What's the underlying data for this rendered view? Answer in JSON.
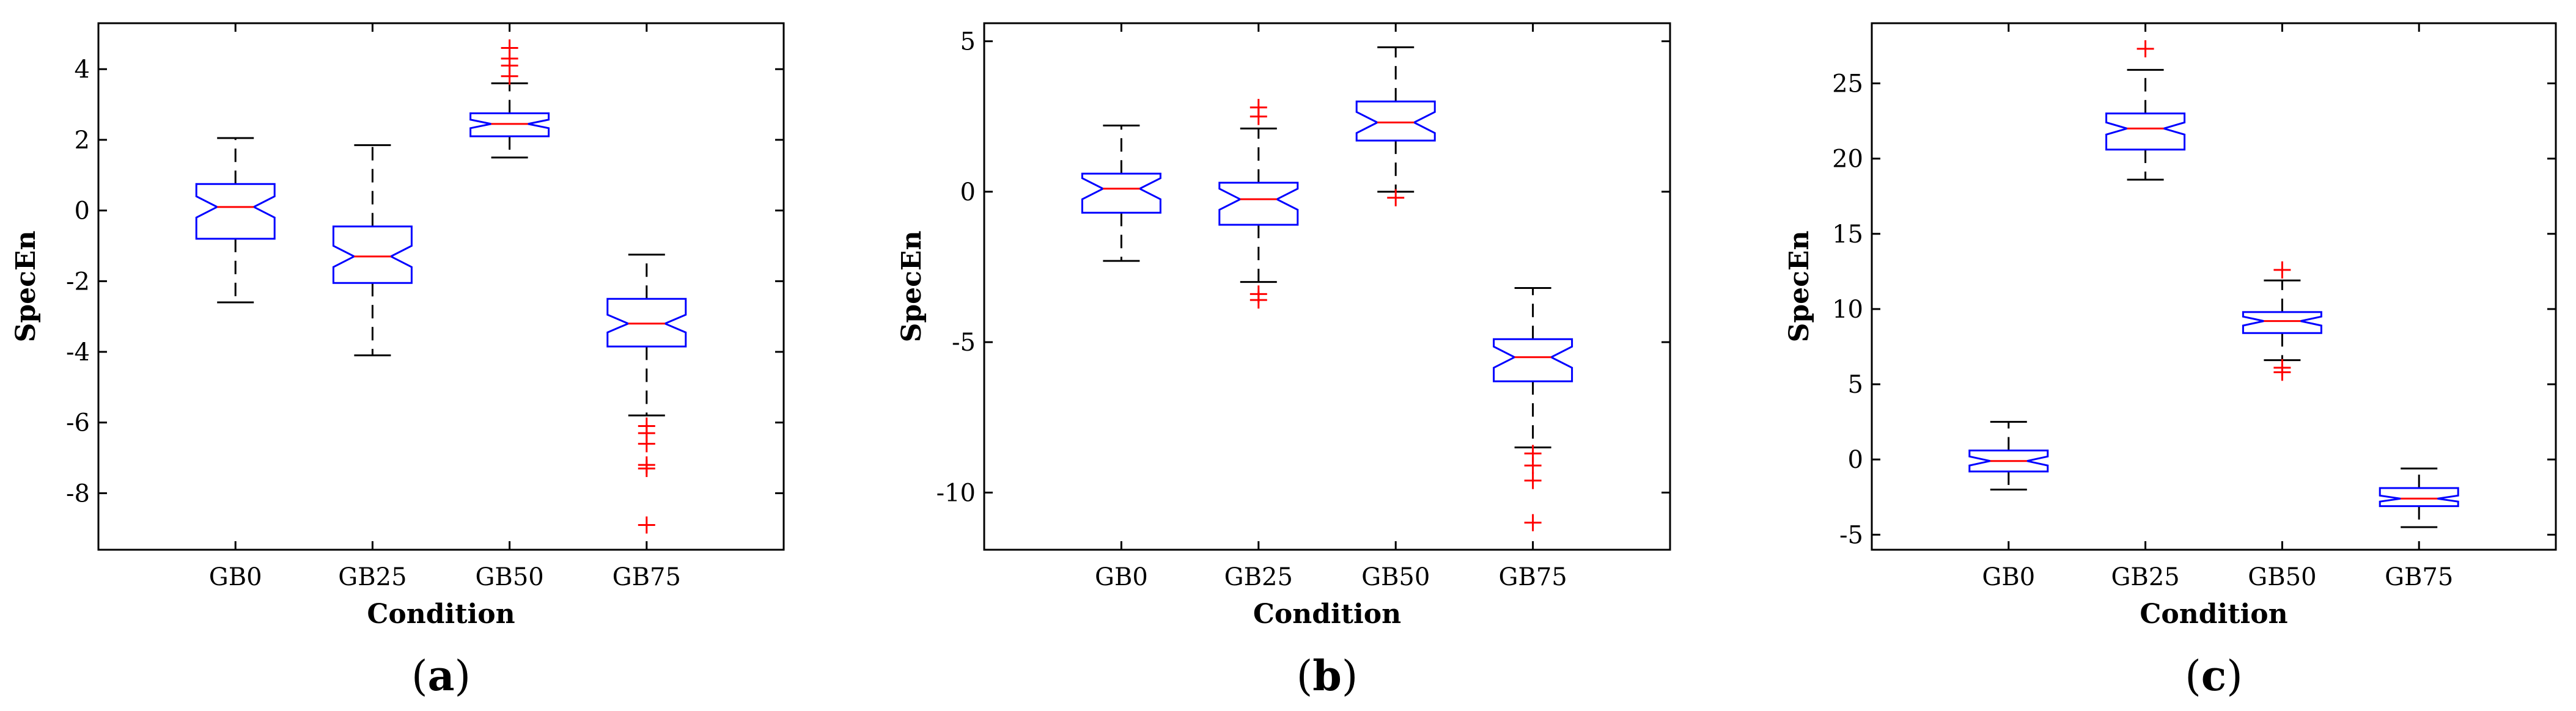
{
  "chart_data": [
    {
      "type": "boxplot",
      "panel_label": {
        "open": "(",
        "letter": "a",
        "close": ")"
      },
      "xlabel": "Condition",
      "ylabel": "SpecEn",
      "categories": [
        "GB0",
        "GB25",
        "GB50",
        "GB75"
      ],
      "ylim": [
        -9.6,
        5.3
      ],
      "yticks": [
        -8,
        -6,
        -4,
        -2,
        0,
        2,
        4
      ],
      "boxes": [
        {
          "category": "GB0",
          "whisker_low": -2.6,
          "q1": -0.8,
          "median": 0.1,
          "q3": 0.75,
          "whisker_high": 2.05,
          "notch_low": -0.2,
          "notch_high": 0.4,
          "outliers": []
        },
        {
          "category": "GB25",
          "whisker_low": -4.1,
          "q1": -2.05,
          "median": -1.3,
          "q3": -0.45,
          "whisker_high": 1.85,
          "notch_low": -1.6,
          "notch_high": -1.0,
          "outliers": []
        },
        {
          "category": "GB50",
          "whisker_low": 1.5,
          "q1": 2.1,
          "median": 2.45,
          "q3": 2.75,
          "whisker_high": 3.6,
          "notch_low": 2.33,
          "notch_high": 2.57,
          "outliers": [
            3.8,
            4.1,
            4.3,
            4.6
          ]
        },
        {
          "category": "GB75",
          "whisker_low": -5.8,
          "q1": -3.85,
          "median": -3.2,
          "q3": -2.5,
          "whisker_high": -1.25,
          "notch_low": -3.45,
          "notch_high": -2.95,
          "outliers": [
            -6.1,
            -6.3,
            -6.6,
            -7.2,
            -7.3,
            -8.9
          ]
        }
      ]
    },
    {
      "type": "boxplot",
      "panel_label": {
        "open": "(",
        "letter": "b",
        "close": ")"
      },
      "xlabel": "Condition",
      "ylabel": "SpecEn",
      "categories": [
        "GB0",
        "GB25",
        "GB50",
        "GB75"
      ],
      "ylim": [
        -11.9,
        5.6
      ],
      "yticks": [
        -10,
        -5,
        0,
        5
      ],
      "boxes": [
        {
          "category": "GB0",
          "whisker_low": -2.3,
          "q1": -0.7,
          "median": 0.1,
          "q3": 0.6,
          "whisker_high": 2.2,
          "notch_low": -0.25,
          "notch_high": 0.45,
          "outliers": []
        },
        {
          "category": "GB25",
          "whisker_low": -3.0,
          "q1": -1.1,
          "median": -0.25,
          "q3": 0.3,
          "whisker_high": 2.1,
          "notch_low": -0.6,
          "notch_high": 0.1,
          "outliers": [
            2.5,
            2.8,
            -3.4,
            -3.6
          ]
        },
        {
          "category": "GB50",
          "whisker_low": 0.0,
          "q1": 1.7,
          "median": 2.3,
          "q3": 3.0,
          "whisker_high": 4.8,
          "notch_low": 1.95,
          "notch_high": 2.65,
          "outliers": [
            -0.2
          ]
        },
        {
          "category": "GB75",
          "whisker_low": -8.5,
          "q1": -6.3,
          "median": -5.5,
          "q3": -4.9,
          "whisker_high": -3.2,
          "notch_low": -5.85,
          "notch_high": -5.15,
          "outliers": [
            -8.7,
            -9.1,
            -9.6,
            -11.0
          ]
        }
      ]
    },
    {
      "type": "boxplot",
      "panel_label": {
        "open": "(",
        "letter": "c",
        "close": ")"
      },
      "xlabel": "Condition",
      "ylabel": "SpecEn",
      "categories": [
        "GB0",
        "GB25",
        "GB50",
        "GB75"
      ],
      "ylim": [
        -6,
        29
      ],
      "yticks": [
        -5,
        0,
        5,
        10,
        15,
        20,
        25
      ],
      "boxes": [
        {
          "category": "GB0",
          "whisker_low": -2.0,
          "q1": -0.8,
          "median": -0.1,
          "q3": 0.6,
          "whisker_high": 2.5,
          "notch_low": -0.4,
          "notch_high": 0.2,
          "outliers": []
        },
        {
          "category": "GB25",
          "whisker_low": 18.6,
          "q1": 20.6,
          "median": 22.0,
          "q3": 23.0,
          "whisker_high": 25.9,
          "notch_low": 21.6,
          "notch_high": 22.4,
          "outliers": [
            27.3
          ]
        },
        {
          "category": "GB50",
          "whisker_low": 6.6,
          "q1": 8.4,
          "median": 9.2,
          "q3": 9.8,
          "whisker_high": 11.9,
          "notch_low": 8.9,
          "notch_high": 9.5,
          "outliers": [
            12.6,
            6.1,
            5.8
          ]
        },
        {
          "category": "GB75",
          "whisker_low": -4.5,
          "q1": -3.1,
          "median": -2.6,
          "q3": -1.9,
          "whisker_high": -0.6,
          "notch_low": -2.8,
          "notch_high": -2.4,
          "outliers": []
        }
      ]
    }
  ],
  "colors": {
    "box": "#0000ff",
    "median": "#ff0000",
    "outlier": "#ff0000",
    "whisker": "#000000",
    "axis": "#000000"
  }
}
